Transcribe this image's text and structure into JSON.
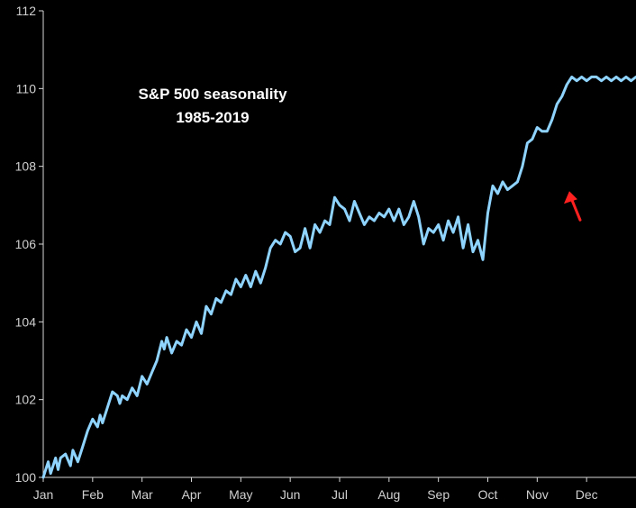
{
  "chart_data": {
    "type": "line",
    "title": "S&P 500 seasonality",
    "subtitle": "1985-2019",
    "xlabel": "",
    "ylabel": "",
    "x_ticks": [
      "Jan",
      "Feb",
      "Mar",
      "Apr",
      "May",
      "Jun",
      "Jul",
      "Aug",
      "Sep",
      "Oct",
      "Nov",
      "Dec"
    ],
    "y_ticks": [
      100,
      102,
      104,
      106,
      108,
      110,
      112
    ],
    "ylim": [
      100,
      112
    ],
    "xlim": [
      0,
      12
    ],
    "grid": false,
    "legend": "none",
    "background": "#000000",
    "axis_color": "#d8d8d8",
    "series": [
      {
        "color": "#8fd3ff",
        "x": [
          0.0,
          0.1,
          0.15,
          0.25,
          0.3,
          0.35,
          0.45,
          0.55,
          0.6,
          0.7,
          0.8,
          0.9,
          1.0,
          1.1,
          1.15,
          1.2,
          1.3,
          1.4,
          1.5,
          1.55,
          1.6,
          1.7,
          1.8,
          1.9,
          2.0,
          2.1,
          2.2,
          2.3,
          2.4,
          2.45,
          2.5,
          2.6,
          2.7,
          2.8,
          2.9,
          3.0,
          3.1,
          3.2,
          3.3,
          3.4,
          3.5,
          3.6,
          3.7,
          3.8,
          3.9,
          4.0,
          4.1,
          4.2,
          4.3,
          4.4,
          4.5,
          4.6,
          4.7,
          4.8,
          4.9,
          5.0,
          5.1,
          5.2,
          5.3,
          5.4,
          5.5,
          5.6,
          5.7,
          5.8,
          5.9,
          6.0,
          6.1,
          6.2,
          6.3,
          6.4,
          6.5,
          6.6,
          6.7,
          6.8,
          6.9,
          7.0,
          7.1,
          7.2,
          7.3,
          7.4,
          7.5,
          7.6,
          7.7,
          7.8,
          7.9,
          8.0,
          8.1,
          8.2,
          8.3,
          8.4,
          8.5,
          8.6,
          8.7,
          8.8,
          8.9,
          9.0,
          9.1,
          9.2,
          9.3,
          9.4,
          9.5,
          9.6,
          9.7,
          9.8,
          9.9,
          10.0,
          10.1,
          10.2,
          10.3,
          10.4,
          10.5,
          10.6,
          10.7,
          10.8,
          10.9,
          11.0,
          11.1,
          11.2,
          11.3,
          11.4,
          11.5,
          11.6,
          11.7,
          11.8,
          11.9,
          12.0
        ],
        "values": [
          100.0,
          100.4,
          100.1,
          100.5,
          100.2,
          100.5,
          100.6,
          100.3,
          100.7,
          100.4,
          100.8,
          101.2,
          101.5,
          101.3,
          101.6,
          101.4,
          101.8,
          102.2,
          102.1,
          101.9,
          102.1,
          102.0,
          102.3,
          102.1,
          102.6,
          102.4,
          102.7,
          103.0,
          103.5,
          103.3,
          103.6,
          103.2,
          103.5,
          103.4,
          103.8,
          103.6,
          104.0,
          103.7,
          104.4,
          104.2,
          104.6,
          104.5,
          104.8,
          104.7,
          105.1,
          104.9,
          105.2,
          104.9,
          105.3,
          105.0,
          105.4,
          105.9,
          106.1,
          106.0,
          106.3,
          106.2,
          105.8,
          105.9,
          106.4,
          105.9,
          106.5,
          106.3,
          106.6,
          106.5,
          107.2,
          107.0,
          106.9,
          106.6,
          107.1,
          106.8,
          106.5,
          106.7,
          106.6,
          106.8,
          106.7,
          106.9,
          106.6,
          106.9,
          106.5,
          106.7,
          107.1,
          106.7,
          106.0,
          106.4,
          106.3,
          106.5,
          106.1,
          106.6,
          106.3,
          106.7,
          105.9,
          106.5,
          105.8,
          106.1,
          105.6,
          106.8,
          107.5,
          107.3,
          107.6,
          107.4,
          107.5,
          107.6,
          108.0,
          108.6,
          108.7,
          109.0,
          108.9,
          108.9,
          109.2,
          109.6,
          109.8,
          110.1,
          110.3,
          110.2,
          110.3,
          110.2,
          110.3,
          110.3,
          110.2,
          110.3,
          110.2,
          110.3,
          110.2,
          110.3,
          110.2,
          110.3
        ]
      }
    ],
    "annotations": [
      {
        "type": "arrow",
        "color": "#ff2020",
        "points_to": {
          "x": 10.65,
          "y": 107.5
        }
      }
    ]
  }
}
